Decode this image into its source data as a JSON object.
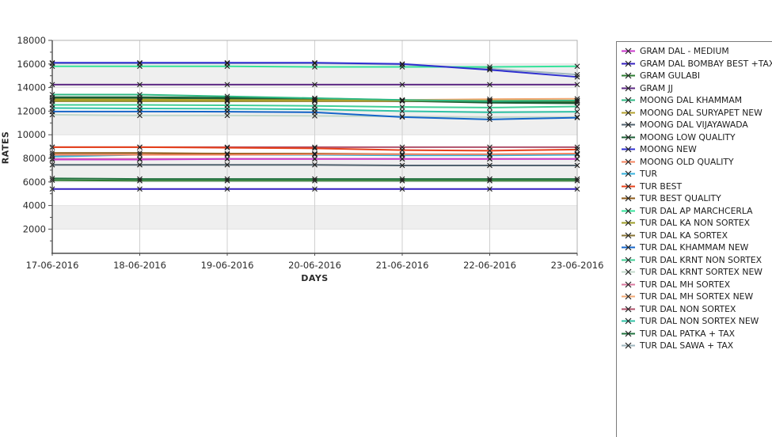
{
  "chart_data": {
    "type": "line",
    "title": "",
    "xlabel": "DAYS",
    "ylabel": "RATES",
    "x": [
      "17-06-2016",
      "18-06-2016",
      "19-06-2016",
      "20-06-2016",
      "21-06-2016",
      "22-06-2016",
      "23-06-2016"
    ],
    "y_ticks": [
      2000,
      4000,
      6000,
      8000,
      10000,
      12000,
      14000,
      16000,
      18000
    ],
    "ylim": [
      0,
      18000
    ],
    "grid": true,
    "legend_position": "right",
    "marker": "x",
    "plot_band_fill": "#efefef",
    "marker_color": "#1f1f1f",
    "series": [
      {
        "name": "GRAM DAL - MEDIUM",
        "color": "#C93ACB",
        "values": [
          7900,
          7900,
          7950,
          7950,
          7950,
          7950,
          7950
        ]
      },
      {
        "name": "GRAM DAL BOMBAY BEST +TAX",
        "color": "#3520C0",
        "values": [
          5400,
          5400,
          5400,
          5400,
          5400,
          5400,
          5400
        ]
      },
      {
        "name": "GRAM GULABI",
        "color": "#2E7D32",
        "values": [
          6150,
          6100,
          6100,
          6100,
          6100,
          6100,
          6100
        ]
      },
      {
        "name": "GRAM JJ",
        "color": "#5E2A84",
        "values": [
          14250,
          14250,
          14250,
          14250,
          14250,
          14250,
          14250
        ]
      },
      {
        "name": "MOONG DAL KHAMMAM",
        "color": "#2FB984",
        "values": [
          13400,
          13400,
          13250,
          13100,
          12950,
          12850,
          12900
        ]
      },
      {
        "name": "MOONG DAL SURYAPET NEW",
        "color": "#B3A02C",
        "values": [
          13000,
          12980,
          12950,
          12930,
          12900,
          12880,
          12900
        ]
      },
      {
        "name": "MOONG DAL VIJAYAWADA",
        "color": "#51626E",
        "values": [
          7450,
          7450,
          7450,
          7450,
          7400,
          7400,
          7400
        ]
      },
      {
        "name": "MOONG LOW QUALITY",
        "color": "#1B5E34",
        "values": [
          13150,
          13150,
          13100,
          13050,
          12900,
          12750,
          12700
        ]
      },
      {
        "name": "MOONG NEW",
        "color": "#2F2FD0",
        "values": [
          16100,
          16100,
          16100,
          16100,
          16000,
          15500,
          14900
        ]
      },
      {
        "name": "MOONG OLD QUALITY",
        "color": "#F4845F",
        "values": [
          8300,
          8300,
          8300,
          8350,
          8350,
          8350,
          8400
        ]
      },
      {
        "name": "TUR",
        "color": "#35B1DC",
        "values": [
          8150,
          8300,
          8300,
          8300,
          8250,
          8250,
          8300
        ]
      },
      {
        "name": "TUR BEST",
        "color": "#E6401A",
        "values": [
          8950,
          8950,
          8900,
          8850,
          8700,
          8650,
          8750
        ]
      },
      {
        "name": "TUR BEST QUALITY",
        "color": "#8C5A18",
        "values": [
          8450,
          8450,
          8400,
          8400,
          8350,
          8300,
          8350
        ]
      },
      {
        "name": "TUR DAL AP MARCHCERLA",
        "color": "#35E39B",
        "values": [
          15800,
          15800,
          15800,
          15750,
          15750,
          15750,
          15800
        ]
      },
      {
        "name": "TUR DAL KA NON SORTEX",
        "color": "#9C9C26",
        "values": [
          12880,
          12880,
          12880,
          12880,
          12880,
          12880,
          12880
        ]
      },
      {
        "name": "TUR DAL KA SORTEX",
        "color": "#877334",
        "values": [
          12840,
          12840,
          12840,
          12840,
          12840,
          12840,
          12840
        ]
      },
      {
        "name": "TUR DAL KHAMMAM NEW",
        "color": "#1565C8",
        "values": [
          11970,
          11970,
          11950,
          11900,
          11500,
          11300,
          11450
        ]
      },
      {
        "name": "TUR DAL KRNT NON SORTEX",
        "color": "#41CE96",
        "values": [
          12530,
          12530,
          12500,
          12450,
          12350,
          12300,
          12400
        ]
      },
      {
        "name": "TUR DAL KRNT SORTEX NEW",
        "color": "#C2D8CA",
        "values": [
          11700,
          11630,
          11630,
          11600,
          11550,
          11500,
          11500
        ]
      },
      {
        "name": "TUR DAL MH SORTEX",
        "color": "#D9789F",
        "values": [
          7950,
          7950,
          7950,
          7950,
          7950,
          7950,
          7950
        ]
      },
      {
        "name": "TUR DAL MH SORTEX NEW",
        "color": "#F0A873",
        "values": [
          12870,
          12870,
          12880,
          12900,
          12950,
          13020,
          13050
        ]
      },
      {
        "name": "TUR DAL NON SORTEX",
        "color": "#B0516B",
        "values": [
          8950,
          8950,
          8950,
          8950,
          8950,
          8950,
          8950
        ]
      },
      {
        "name": "TUR DAL NON SORTEX NEW",
        "color": "#30C2A5",
        "values": [
          12260,
          12230,
          12200,
          12150,
          12000,
          11900,
          11950
        ]
      },
      {
        "name": "TUR DAL PATKA + TAX",
        "color": "#20713E",
        "values": [
          6300,
          6250,
          6250,
          6250,
          6250,
          6250,
          6250
        ]
      },
      {
        "name": "TUR DAL SAWA + TAX",
        "color": "#9FB6BE",
        "values": [
          16050,
          16050,
          16050,
          16050,
          15950,
          15600,
          15100
        ]
      }
    ]
  }
}
